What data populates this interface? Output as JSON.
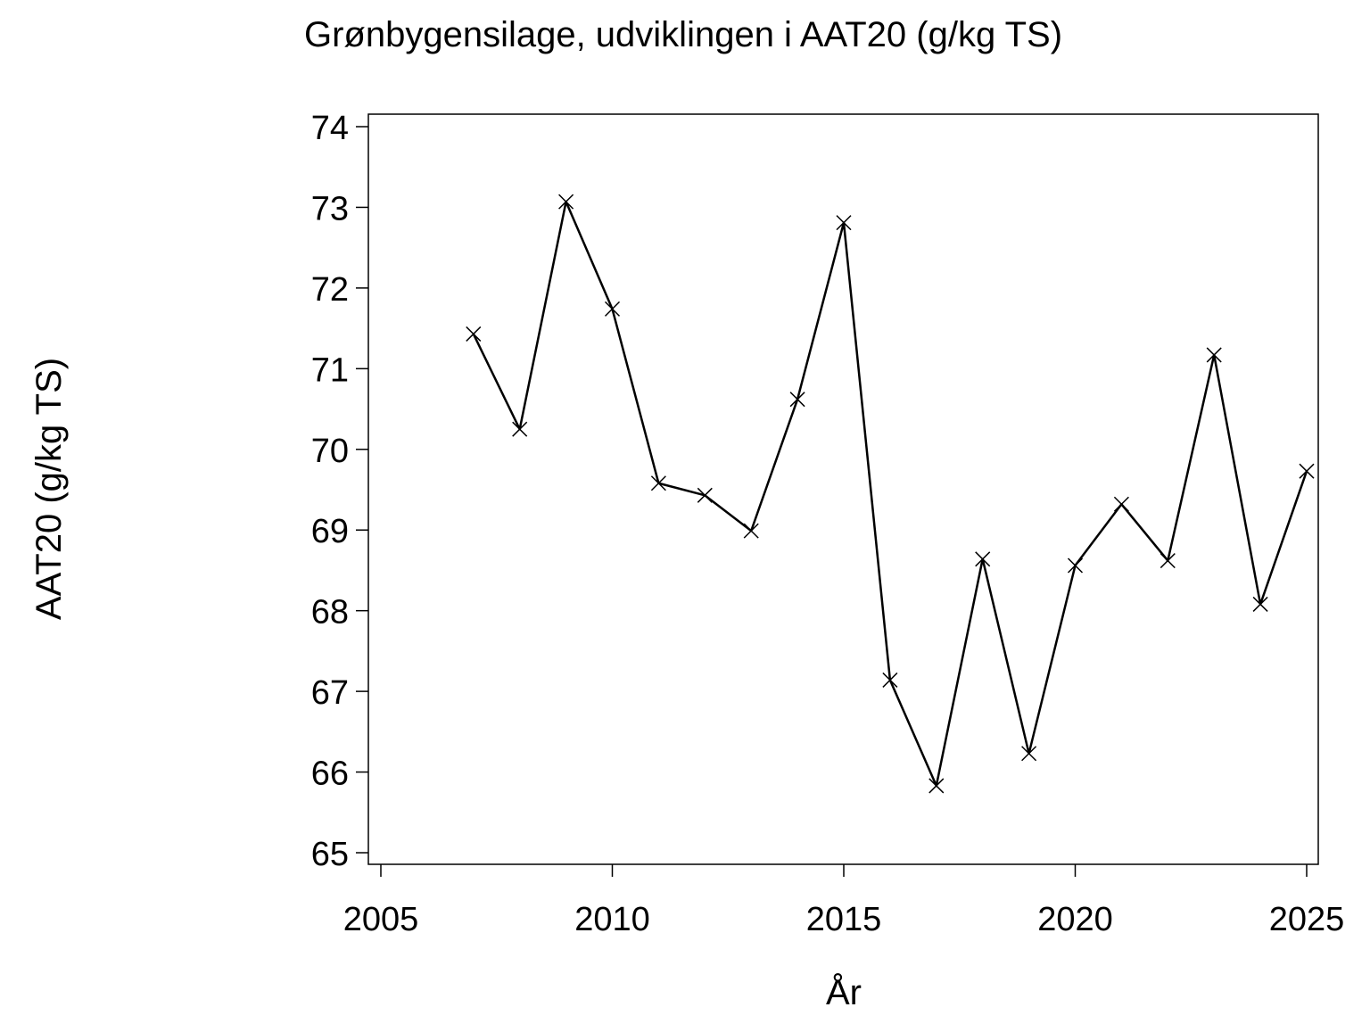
{
  "chart_data": {
    "type": "line",
    "title": "Grønbygensilage,  udviklingen  i  AAT20  (g/kg  TS)",
    "x_label": "År",
    "y_label": "AAT20  (g/kg  TS)",
    "x": [
      2007,
      2008,
      2009,
      2010,
      2011,
      2012,
      2013,
      2014,
      2015,
      2016,
      2017,
      2018,
      2019,
      2020,
      2021,
      2022,
      2023,
      2024,
      2025
    ],
    "series": [
      {
        "color": "#000000",
        "values": [
          71.43,
          70.25,
          73.07,
          71.74,
          69.58,
          69.43,
          68.99,
          70.62,
          72.81,
          67.14,
          65.83,
          68.64,
          66.23,
          68.56,
          69.32,
          68.62,
          71.17,
          68.08,
          69.73
        ]
      }
    ],
    "xlim": [
      2005,
      2025
    ],
    "xticks": [
      2005,
      2010,
      2015,
      2020,
      2025
    ],
    "ylim": [
      65,
      74
    ],
    "yticks": [
      65,
      66,
      67,
      68,
      69,
      70,
      71,
      72,
      73,
      74
    ],
    "marker": "x"
  }
}
